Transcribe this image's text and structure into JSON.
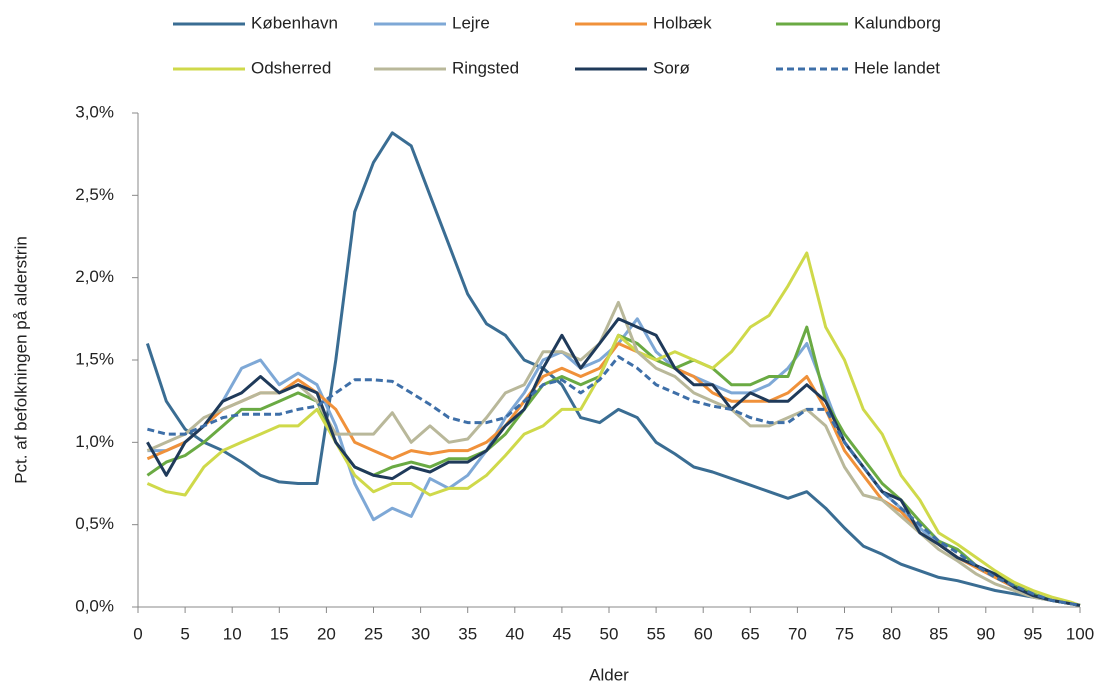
{
  "chart_data": {
    "type": "line",
    "xlabel": "Alder",
    "ylabel": "Pct. af  befolkningen på alderstrin",
    "legend": "top",
    "grid": false,
    "x": [
      1,
      3,
      5,
      7,
      9,
      11,
      13,
      15,
      17,
      19,
      21,
      23,
      25,
      27,
      29,
      31,
      33,
      35,
      37,
      39,
      41,
      43,
      45,
      47,
      49,
      51,
      53,
      55,
      57,
      59,
      61,
      63,
      65,
      67,
      69,
      71,
      73,
      75,
      77,
      79,
      81,
      83,
      85,
      87,
      89,
      91,
      93,
      95,
      97,
      99,
      100
    ],
    "xlim": [
      0,
      100
    ],
    "xticks": [
      0,
      5,
      10,
      15,
      20,
      25,
      30,
      35,
      40,
      45,
      50,
      55,
      60,
      65,
      70,
      75,
      80,
      85,
      90,
      95,
      100
    ],
    "ylim": [
      0,
      3
    ],
    "yticks": [
      {
        "value": 0,
        "label": "0,0%"
      },
      {
        "value": 0.5,
        "label": "0,5%"
      },
      {
        "value": 1,
        "label": "1,0%"
      },
      {
        "value": 1.5,
        "label": "1,5%"
      },
      {
        "value": 2,
        "label": "2,0%"
      },
      {
        "value": 2.5,
        "label": "2,5%"
      },
      {
        "value": 3,
        "label": "3,0%"
      }
    ],
    "series": [
      {
        "name": "København",
        "color": "#3a6d93",
        "style": "solid",
        "values": [
          1.6,
          1.25,
          1.08,
          1.0,
          0.95,
          0.88,
          0.8,
          0.76,
          0.75,
          0.75,
          1.5,
          2.4,
          2.7,
          2.88,
          2.8,
          2.5,
          2.2,
          1.9,
          1.72,
          1.65,
          1.5,
          1.45,
          1.35,
          1.15,
          1.12,
          1.2,
          1.15,
          1.0,
          0.93,
          0.85,
          0.82,
          0.78,
          0.74,
          0.7,
          0.66,
          0.7,
          0.6,
          0.48,
          0.37,
          0.32,
          0.26,
          0.22,
          0.18,
          0.16,
          0.13,
          0.1,
          0.08,
          0.06,
          0.04,
          0.02,
          0.01
        ]
      },
      {
        "name": "Lejre",
        "color": "#7ea8d6",
        "style": "solid",
        "values": [
          0.95,
          0.95,
          1.0,
          1.1,
          1.25,
          1.45,
          1.5,
          1.35,
          1.42,
          1.35,
          1.1,
          0.75,
          0.53,
          0.6,
          0.55,
          0.78,
          0.72,
          0.8,
          0.95,
          1.15,
          1.3,
          1.5,
          1.55,
          1.45,
          1.5,
          1.6,
          1.75,
          1.55,
          1.45,
          1.4,
          1.35,
          1.3,
          1.3,
          1.35,
          1.45,
          1.6,
          1.3,
          1.0,
          0.85,
          0.7,
          0.6,
          0.48,
          0.38,
          0.3,
          0.24,
          0.18,
          0.12,
          0.07,
          0.04,
          0.02,
          0.01
        ]
      },
      {
        "name": "Holbæk",
        "color": "#f0913a",
        "style": "solid",
        "values": [
          0.9,
          0.95,
          1.0,
          1.1,
          1.2,
          1.25,
          1.3,
          1.3,
          1.38,
          1.3,
          1.2,
          1.0,
          0.95,
          0.9,
          0.95,
          0.93,
          0.95,
          0.95,
          1.0,
          1.1,
          1.25,
          1.4,
          1.45,
          1.4,
          1.45,
          1.6,
          1.55,
          1.5,
          1.45,
          1.4,
          1.3,
          1.25,
          1.25,
          1.25,
          1.3,
          1.4,
          1.2,
          0.95,
          0.8,
          0.65,
          0.58,
          0.45,
          0.38,
          0.3,
          0.24,
          0.18,
          0.12,
          0.07,
          0.04,
          0.02,
          0.01
        ]
      },
      {
        "name": "Kalundborg",
        "color": "#6aaa43",
        "style": "solid",
        "values": [
          0.8,
          0.88,
          0.92,
          1.0,
          1.1,
          1.2,
          1.2,
          1.25,
          1.3,
          1.25,
          1.0,
          0.85,
          0.8,
          0.85,
          0.88,
          0.85,
          0.9,
          0.9,
          0.95,
          1.05,
          1.2,
          1.35,
          1.4,
          1.35,
          1.4,
          1.65,
          1.6,
          1.5,
          1.45,
          1.5,
          1.45,
          1.35,
          1.35,
          1.4,
          1.4,
          1.7,
          1.25,
          1.05,
          0.9,
          0.75,
          0.65,
          0.52,
          0.4,
          0.35,
          0.25,
          0.2,
          0.13,
          0.08,
          0.04,
          0.02,
          0.01
        ]
      },
      {
        "name": "Odsherred",
        "color": "#cfd94a",
        "style": "solid",
        "values": [
          0.75,
          0.7,
          0.68,
          0.85,
          0.95,
          1.0,
          1.05,
          1.1,
          1.1,
          1.2,
          1.0,
          0.8,
          0.7,
          0.75,
          0.75,
          0.68,
          0.72,
          0.72,
          0.8,
          0.92,
          1.05,
          1.1,
          1.2,
          1.2,
          1.4,
          1.65,
          1.55,
          1.5,
          1.55,
          1.5,
          1.45,
          1.55,
          1.7,
          1.77,
          1.95,
          2.15,
          1.7,
          1.5,
          1.2,
          1.05,
          0.8,
          0.65,
          0.45,
          0.38,
          0.3,
          0.22,
          0.15,
          0.1,
          0.06,
          0.03,
          0.01
        ]
      },
      {
        "name": "Ringsted",
        "color": "#b9b89a",
        "style": "solid",
        "values": [
          0.95,
          1.0,
          1.05,
          1.15,
          1.2,
          1.25,
          1.3,
          1.3,
          1.35,
          1.25,
          1.05,
          1.05,
          1.05,
          1.18,
          1.0,
          1.1,
          1.0,
          1.02,
          1.15,
          1.3,
          1.35,
          1.55,
          1.55,
          1.5,
          1.6,
          1.85,
          1.55,
          1.45,
          1.4,
          1.3,
          1.25,
          1.2,
          1.1,
          1.1,
          1.15,
          1.2,
          1.1,
          0.85,
          0.68,
          0.65,
          0.55,
          0.45,
          0.35,
          0.28,
          0.2,
          0.14,
          0.1,
          0.06,
          0.04,
          0.02,
          0.01
        ]
      },
      {
        "name": "Sorø",
        "color": "#1f3a5a",
        "style": "solid",
        "values": [
          1.0,
          0.8,
          1.0,
          1.1,
          1.25,
          1.3,
          1.4,
          1.3,
          1.35,
          1.3,
          1.0,
          0.85,
          0.8,
          0.78,
          0.85,
          0.82,
          0.88,
          0.88,
          0.95,
          1.1,
          1.2,
          1.45,
          1.65,
          1.45,
          1.6,
          1.75,
          1.7,
          1.65,
          1.45,
          1.35,
          1.35,
          1.2,
          1.3,
          1.25,
          1.25,
          1.35,
          1.25,
          1.0,
          0.85,
          0.7,
          0.65,
          0.45,
          0.38,
          0.3,
          0.25,
          0.2,
          0.12,
          0.07,
          0.04,
          0.02,
          0.01
        ]
      },
      {
        "name": "Hele landet",
        "color": "#3e6fa8",
        "style": "dashed",
        "values": [
          1.08,
          1.05,
          1.05,
          1.1,
          1.15,
          1.17,
          1.17,
          1.17,
          1.2,
          1.22,
          1.3,
          1.38,
          1.38,
          1.37,
          1.3,
          1.23,
          1.15,
          1.12,
          1.12,
          1.15,
          1.25,
          1.35,
          1.38,
          1.3,
          1.38,
          1.52,
          1.45,
          1.35,
          1.3,
          1.25,
          1.22,
          1.2,
          1.15,
          1.12,
          1.12,
          1.2,
          1.2,
          1.0,
          0.85,
          0.7,
          0.6,
          0.5,
          0.4,
          0.33,
          0.25,
          0.18,
          0.13,
          0.08,
          0.04,
          0.02,
          0.01
        ]
      }
    ]
  }
}
